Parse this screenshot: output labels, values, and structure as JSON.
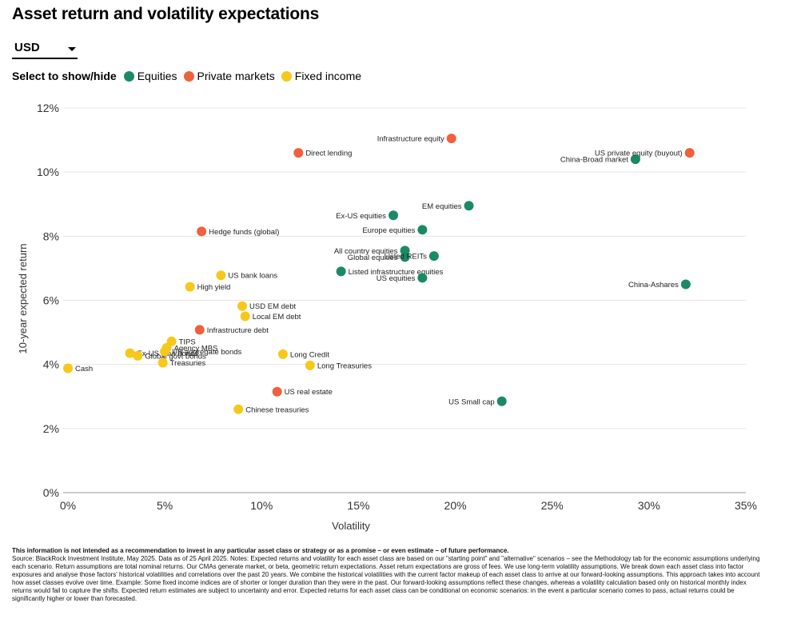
{
  "title": "Asset return and volatility expectations",
  "currency": {
    "value": "USD"
  },
  "legend": {
    "label": "Select to show/hide",
    "items": [
      {
        "name": "Equities",
        "color": "#1b8a63"
      },
      {
        "name": "Private markets",
        "color": "#f0603b"
      },
      {
        "name": "Fixed income",
        "color": "#f7c81b"
      }
    ]
  },
  "chart_data": {
    "type": "scatter",
    "xlabel": "Volatility",
    "ylabel": "10-year expected return",
    "xlim": [
      0,
      35
    ],
    "ylim": [
      0,
      12
    ],
    "xticks": [
      "0%",
      "5%",
      "10%",
      "15%",
      "20%",
      "25%",
      "30%",
      "35%"
    ],
    "yticks": [
      "0%",
      "2%",
      "4%",
      "6%",
      "8%",
      "10%",
      "12%"
    ],
    "grid": "horizontal",
    "series": [
      {
        "name": "Equities",
        "color": "#1b8a63",
        "points": [
          {
            "label": "China-Broad market",
            "x": 29.3,
            "y": 10.4,
            "label_pos": "left"
          },
          {
            "label": "EM equities",
            "x": 20.7,
            "y": 8.95,
            "label_pos": "left"
          },
          {
            "label": "Ex-US equities",
            "x": 16.8,
            "y": 8.65,
            "label_pos": "left"
          },
          {
            "label": "Europe equities",
            "x": 18.3,
            "y": 8.2,
            "label_pos": "left"
          },
          {
            "label": "All country equities",
            "x": 17.4,
            "y": 7.55,
            "label_pos": "left"
          },
          {
            "label": "Global equities",
            "x": 17.4,
            "y": 7.35,
            "label_pos": "left"
          },
          {
            "label": "Listed REITs",
            "x": 18.9,
            "y": 7.38,
            "label_pos": "left"
          },
          {
            "label": "Listed infrastructure equities",
            "x": 14.1,
            "y": 6.9,
            "label_pos": "right"
          },
          {
            "label": "US equities",
            "x": 18.3,
            "y": 6.7,
            "label_pos": "left"
          },
          {
            "label": "China-Ashares",
            "x": 31.9,
            "y": 6.5,
            "label_pos": "left"
          },
          {
            "label": "US Small cap",
            "x": 22.4,
            "y": 2.85,
            "label_pos": "left"
          }
        ]
      },
      {
        "name": "Private markets",
        "color": "#f0603b",
        "points": [
          {
            "label": "Infrastructure equity",
            "x": 19.8,
            "y": 11.05,
            "label_pos": "left"
          },
          {
            "label": "Direct lending",
            "x": 11.9,
            "y": 10.6,
            "label_pos": "right"
          },
          {
            "label": "US private equity (buyout)",
            "x": 32.1,
            "y": 10.6,
            "label_pos": "left"
          },
          {
            "label": "Hedge funds (global)",
            "x": 6.9,
            "y": 8.15,
            "label_pos": "right"
          },
          {
            "label": "Infrastructure debt",
            "x": 6.8,
            "y": 5.08,
            "label_pos": "right"
          },
          {
            "label": "US real estate",
            "x": 10.8,
            "y": 3.15,
            "label_pos": "right"
          }
        ]
      },
      {
        "name": "Fixed income",
        "color": "#f7c81b",
        "points": [
          {
            "label": "US bank loans",
            "x": 7.9,
            "y": 6.78,
            "label_pos": "right"
          },
          {
            "label": "High yield",
            "x": 6.3,
            "y": 6.42,
            "label_pos": "right"
          },
          {
            "label": "USD EM debt",
            "x": 9.0,
            "y": 5.82,
            "label_pos": "right"
          },
          {
            "label": "Local EM debt",
            "x": 9.15,
            "y": 5.5,
            "label_pos": "right"
          },
          {
            "label": "TIPS",
            "x": 5.35,
            "y": 4.72,
            "label_pos": "right"
          },
          {
            "label": "Agency MBS",
            "x": 5.1,
            "y": 4.52,
            "label_pos": "right"
          },
          {
            "label": "Ex-US govt bonds",
            "x": 3.2,
            "y": 4.35,
            "label_pos": "right"
          },
          {
            "label": "Global govt bonds",
            "x": 3.6,
            "y": 4.27,
            "label_pos": "right"
          },
          {
            "label": "US aggregate bonds",
            "x": 5.0,
            "y": 4.4,
            "label_pos": "right"
          },
          {
            "label": "Treasuries",
            "x": 4.9,
            "y": 4.05,
            "label_pos": "right"
          },
          {
            "label": "Long Credit",
            "x": 11.1,
            "y": 4.32,
            "label_pos": "right"
          },
          {
            "label": "Long Treasuries",
            "x": 12.5,
            "y": 3.97,
            "label_pos": "right"
          },
          {
            "label": "Cash",
            "x": 0.0,
            "y": 3.88,
            "label_pos": "right"
          },
          {
            "label": "Chinese treasuries",
            "x": 8.8,
            "y": 2.6,
            "label_pos": "right"
          }
        ]
      }
    ]
  },
  "notes": {
    "disclaimer": "This information is not intended as a recommendation to invest in any particular asset class or strategy or as a promise – or even estimate – of future performance.",
    "source": "Source: BlackRock Investment Institute, May 2025. Data as of 25 April 2025. Notes: Expected returns and volatility for each asset class are based on our \"starting point\" and \"alternative\" scenarios – see the Methodology tab for the economic assumptions underlying each scenario. Return assumptions are total nominal returns. Our CMAs generate market, or beta, geometric return expectations. Asset return expectations are gross of fees. We use long-term volatility assumptions. We break down each asset class into factor exposures and analyse those factors' historical volatilities and correlations over the past 20 years. We combine the historical volatilities with the current factor makeup of each asset class to arrive at our forward-looking assumptions. This approach takes into account how asset classes evolve over time. Example: Some fixed income indices are of shorter or longer duration than they were in the past. Our forward-looking assumptions reflect these changes, whereas a volatility calculation based only on historical monthly index returns would fail to capture the shifts. Expected return estimates are subject to uncertainty and error. Expected returns for each asset class can be conditional on economic scenarios: in the event a particular scenario comes to pass, actual returns could be significantly higher or lower than forecasted."
  }
}
